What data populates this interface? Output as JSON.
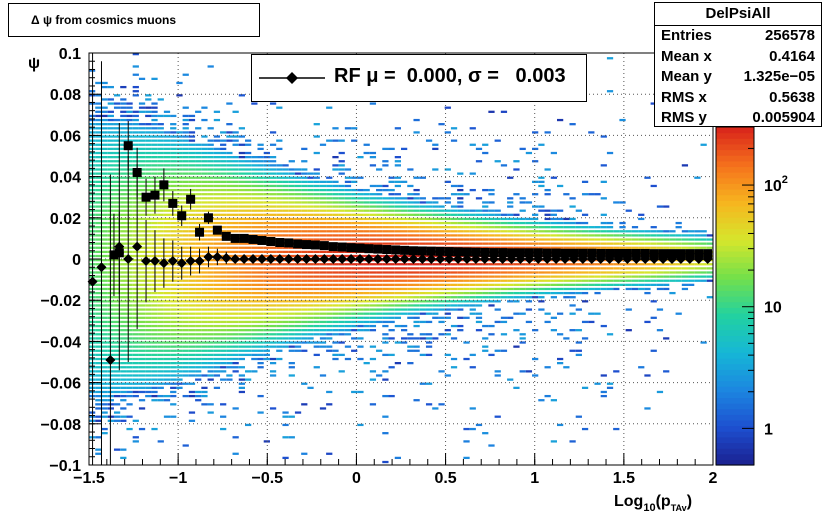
{
  "title": "Δ ψ from cosmics muons",
  "stats": {
    "name": "DelPsiAll",
    "rows": [
      {
        "label": "Entries",
        "value": "256578"
      },
      {
        "label": "Mean x",
        "value": "0.4164"
      },
      {
        "label": "Mean y",
        "value": "1.325e−05"
      },
      {
        "label": "RMS x",
        "value": "0.5638"
      },
      {
        "label": "RMS y",
        "value": "0.005904"
      }
    ]
  },
  "legend": {
    "label": "RF μ =  0.000, σ =   0.003"
  },
  "colors": {
    "profile_markers": "#000000",
    "palette": [
      "#1b1f8e",
      "#1d4fd0",
      "#1c86e0",
      "#16b7d6",
      "#22d2a0",
      "#74e04a",
      "#d6e62c",
      "#f7b51f",
      "#f5701c",
      "#d8231b"
    ]
  },
  "chart_data": {
    "type": "heatmap",
    "title": "Δ ψ from cosmics muons",
    "xlabel": "Log10(pTAv)",
    "ylabel": "ψ",
    "xlim": [
      -1.5,
      2
    ],
    "ylim": [
      -0.1,
      0.1
    ],
    "x_ticks": [
      "−1.5",
      "−1",
      "−0.5",
      "0",
      "0.5",
      "1",
      "1.5",
      "2"
    ],
    "y_ticks": [
      "−0.1",
      "−0.08",
      "−0.06",
      "−0.04",
      "−0.02",
      "0",
      "0.02",
      "0.04",
      "0.06",
      "0.08",
      "0.1"
    ],
    "z_scale": "log",
    "z_range": [
      0.5,
      300
    ],
    "z_ticks": [
      {
        "value": 1,
        "label": "1"
      },
      {
        "value": 10,
        "label": "10"
      },
      {
        "value": 100,
        "label": "10²"
      }
    ],
    "grid": true,
    "series": [
      {
        "marker": "square",
        "x": [
          -1.36,
          -1.33,
          -1.28,
          -1.23,
          -1.18,
          -1.13,
          -1.08,
          -1.03,
          -0.98,
          -0.93,
          -0.88,
          -0.83,
          -0.78,
          -0.73,
          -0.68,
          -0.63,
          -0.58,
          -0.53,
          -0.48,
          -0.43,
          -0.38,
          -0.33,
          -0.28,
          -0.23,
          -0.18,
          -0.13,
          -0.08,
          -0.03,
          0.02,
          0.07,
          0.12,
          0.17,
          0.22,
          0.27,
          0.32,
          0.37,
          0.42,
          0.47,
          0.52,
          0.57,
          0.62,
          0.67,
          0.72,
          0.77,
          0.82,
          0.87,
          0.92,
          0.97,
          1.02,
          1.07,
          1.12,
          1.17,
          1.22,
          1.27,
          1.32,
          1.37,
          1.42,
          1.47,
          1.52,
          1.57,
          1.62,
          1.67,
          1.72,
          1.77,
          1.82,
          1.87,
          1.92,
          1.97
        ],
        "y": [
          0.002,
          0.003,
          0.055,
          0.042,
          0.03,
          0.031,
          0.036,
          0.027,
          0.021,
          0.029,
          0.013,
          0.02,
          0.014,
          0.011,
          0.01,
          0.01,
          0.0095,
          0.009,
          0.0085,
          0.008,
          0.0078,
          0.0073,
          0.007,
          0.0068,
          0.0065,
          0.006,
          0.0058,
          0.0055,
          0.0053,
          0.005,
          0.0048,
          0.0046,
          0.0044,
          0.0042,
          0.004,
          0.0039,
          0.0038,
          0.0037,
          0.0036,
          0.0035,
          0.0034,
          0.0033,
          0.0032,
          0.0031,
          0.0031,
          0.003,
          0.003,
          0.003,
          0.003,
          0.0029,
          0.0029,
          0.0028,
          0.0028,
          0.0028,
          0.0028,
          0.0027,
          0.0027,
          0.0027,
          0.0027,
          0.0027,
          0.0027,
          0.0026,
          0.0026,
          0.0026,
          0.0026,
          0.0026,
          0.0026,
          0.0026
        ],
        "yerr": [
          0.02,
          0.02,
          0.012,
          0.012,
          0.009,
          0.009,
          0.008,
          0.006,
          0.005,
          0.005,
          0.004,
          0.003,
          0.002,
          0.002,
          0.0015,
          0.001,
          0.001,
          0.0008,
          0.0008,
          0.0006,
          0.0006,
          0.0005,
          0.0005,
          0.0004,
          0.0004,
          0.0003,
          0.0003,
          0.0003,
          0.0003,
          0.0003,
          0.0003,
          0.0002,
          0.0002,
          0.0002,
          0.0002,
          0.0002,
          0.0002,
          0.0002,
          0.0002,
          0.0002,
          0.0002,
          0.0002,
          0.0002,
          0.0002,
          0.0002,
          0.0002,
          0.0002,
          0.0002,
          0.0002,
          0.0002,
          0.0002,
          0.0002,
          0.0002,
          0.0002,
          0.0002,
          0.0002,
          0.0002,
          0.0002,
          0.0002,
          0.0002,
          0.0002,
          0.0002,
          0.0002,
          0.0002,
          0.0002,
          0.0002,
          0.0002,
          0.0002
        ]
      },
      {
        "name": "RF",
        "marker": "diamond",
        "x": [
          -1.48,
          -1.43,
          -1.38,
          -1.33,
          -1.28,
          -1.23,
          -1.18,
          -1.13,
          -1.08,
          -1.03,
          -0.98,
          -0.93,
          -0.88,
          -0.83,
          -0.78,
          -0.73,
          -0.68,
          -0.63,
          -0.58,
          -0.53,
          -0.48,
          -0.43,
          -0.38,
          -0.33,
          -0.28,
          -0.23,
          -0.18,
          -0.13,
          -0.08,
          -0.03,
          0.02,
          0.07,
          0.12,
          0.17,
          0.22,
          0.27,
          0.32,
          0.37,
          0.42,
          0.47,
          0.52,
          0.57,
          0.62,
          0.67,
          0.72,
          0.77,
          0.82,
          0.87,
          0.92,
          0.97,
          1.02,
          1.07,
          1.12,
          1.17,
          1.22,
          1.27,
          1.32,
          1.37,
          1.42,
          1.47,
          1.52,
          1.57,
          1.62,
          1.67,
          1.72,
          1.77,
          1.82,
          1.87,
          1.92,
          1.97
        ],
        "y": [
          -0.011,
          -0.004,
          -0.049,
          0.006,
          0.0,
          0.006,
          -0.001,
          -0.001,
          -0.002,
          -0.001,
          -0.002,
          -0.001,
          -0.001,
          0.001,
          0.001,
          0.0005,
          0.0,
          0.0,
          0.0,
          0.0,
          0.0,
          0.0,
          0.0,
          0.0,
          0.0,
          0.0,
          0.0,
          0.0,
          0.0,
          0.0,
          0.0,
          0.0,
          0.0,
          0.0,
          0.0,
          0.0,
          0.0,
          0.0,
          0.0,
          0.0,
          0.0,
          0.0,
          0.0,
          0.0,
          0.0,
          0.0,
          0.0,
          0.0,
          0.0,
          0.0,
          0.0,
          0.0,
          0.0,
          0.0,
          0.0,
          0.0,
          0.0,
          0.0,
          0.0,
          0.0,
          0.0,
          0.0,
          0.0,
          0.0,
          0.0,
          0.0,
          0.0,
          0.0,
          0.0,
          0.0
        ],
        "yerr": [
          0.12,
          0.1,
          0.09,
          0.06,
          0.05,
          0.04,
          0.02,
          0.015,
          0.012,
          0.01,
          0.008,
          0.007,
          0.006,
          0.005,
          0.004,
          0.003,
          0.002,
          0.002,
          0.0015,
          0.001,
          0.001,
          0.001,
          0.0008,
          0.0008,
          0.0006,
          0.0006,
          0.0005,
          0.0005,
          0.0004,
          0.0004,
          0.0003,
          0.0003,
          0.0003,
          0.0003,
          0.0003,
          0.0002,
          0.0002,
          0.0002,
          0.0002,
          0.0002,
          0.0002,
          0.0002,
          0.0002,
          0.0002,
          0.0002,
          0.0002,
          0.0002,
          0.0002,
          0.0002,
          0.0002,
          0.0002,
          0.0002,
          0.0002,
          0.0002,
          0.0002,
          0.0002,
          0.0002,
          0.0002,
          0.0002,
          0.0002,
          0.0002,
          0.0002,
          0.0002,
          0.0002,
          0.0002,
          0.0002,
          0.0002,
          0.0002,
          0.0002,
          0.0002
        ]
      }
    ]
  }
}
